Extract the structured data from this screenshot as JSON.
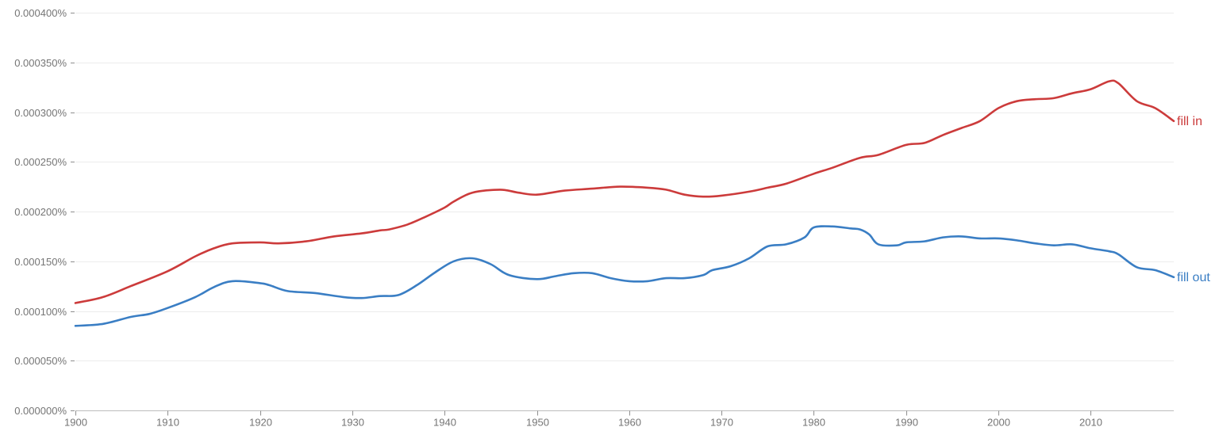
{
  "chart_data": {
    "type": "line",
    "title": "",
    "xlabel": "",
    "ylabel": "",
    "xlim": [
      1900,
      2019
    ],
    "ylim": [
      0,
      0.0004
    ],
    "grid": true,
    "legend": "inline-right",
    "y_ticks": [
      {
        "value": 0,
        "label": "0.000000%"
      },
      {
        "value": 5e-05,
        "label": "0.000050%"
      },
      {
        "value": 0.0001,
        "label": "0.000100%"
      },
      {
        "value": 0.00015,
        "label": "0.000150%"
      },
      {
        "value": 0.0002,
        "label": "0.000200%"
      },
      {
        "value": 0.00025,
        "label": "0.000250%"
      },
      {
        "value": 0.0003,
        "label": "0.000300%"
      },
      {
        "value": 0.00035,
        "label": "0.000350%"
      },
      {
        "value": 0.0004,
        "label": "0.000400%"
      }
    ],
    "x_ticks": [
      {
        "value": 1900,
        "label": "1900"
      },
      {
        "value": 1910,
        "label": "1910"
      },
      {
        "value": 1920,
        "label": "1920"
      },
      {
        "value": 1930,
        "label": "1930"
      },
      {
        "value": 1940,
        "label": "1940"
      },
      {
        "value": 1950,
        "label": "1950"
      },
      {
        "value": 1960,
        "label": "1960"
      },
      {
        "value": 1970,
        "label": "1970"
      },
      {
        "value": 1980,
        "label": "1980"
      },
      {
        "value": 1990,
        "label": "1990"
      },
      {
        "value": 2000,
        "label": "2000"
      },
      {
        "value": 2010,
        "label": "2010"
      }
    ],
    "series": [
      {
        "name": "fill in",
        "color": "#cc3b3b",
        "x": [
          1900,
          1903,
          1906,
          1910,
          1913,
          1915,
          1917,
          1920,
          1922,
          1925,
          1928,
          1931,
          1933,
          1934,
          1936,
          1938,
          1940,
          1941,
          1943,
          1946,
          1948,
          1950,
          1953,
          1956,
          1959,
          1962,
          1964,
          1966,
          1968,
          1970,
          1973,
          1975,
          1977,
          1980,
          1982,
          1985,
          1987,
          1990,
          1992,
          1994,
          1996,
          1998,
          2000,
          2002,
          2004,
          2006,
          2008,
          2010,
          2012,
          2013,
          2015,
          2017,
          2019
        ],
        "values": [
          0.000108,
          0.000114,
          0.000125,
          0.00014,
          0.000155,
          0.000163,
          0.000168,
          0.000169,
          0.000168,
          0.00017,
          0.000175,
          0.000178,
          0.000181,
          0.000182,
          0.000187,
          0.000195,
          0.000204,
          0.00021,
          0.000219,
          0.000222,
          0.000219,
          0.000217,
          0.000221,
          0.000223,
          0.000225,
          0.000224,
          0.000222,
          0.000217,
          0.000215,
          0.000216,
          0.00022,
          0.000224,
          0.000228,
          0.000238,
          0.000244,
          0.000254,
          0.000257,
          0.000267,
          0.000269,
          0.000277,
          0.000284,
          0.000291,
          0.000304,
          0.000311,
          0.000313,
          0.000314,
          0.000319,
          0.000323,
          0.000331,
          0.000329,
          0.000311,
          0.000304,
          0.000291
        ]
      },
      {
        "name": "fill out",
        "color": "#3a7ec4",
        "x": [
          1900,
          1903,
          1906,
          1908,
          1910,
          1913,
          1915,
          1917,
          1920,
          1921,
          1923,
          1926,
          1929,
          1931,
          1933,
          1935,
          1937,
          1939,
          1941,
          1943,
          1945,
          1947,
          1950,
          1952,
          1954,
          1956,
          1958,
          1960,
          1962,
          1964,
          1966,
          1968,
          1969,
          1971,
          1973,
          1975,
          1977,
          1979,
          1980,
          1982,
          1984,
          1985,
          1986,
          1987,
          1989,
          1990,
          1992,
          1994,
          1996,
          1998,
          2000,
          2002,
          2004,
          2006,
          2008,
          2010,
          2012,
          2013,
          2015,
          2017,
          2019
        ],
        "values": [
          8.5e-05,
          8.7e-05,
          9.4e-05,
          9.7e-05,
          0.000103,
          0.000114,
          0.000124,
          0.00013,
          0.000128,
          0.000126,
          0.00012,
          0.000118,
          0.000114,
          0.000113,
          0.000115,
          0.000116,
          0.000126,
          0.000139,
          0.00015,
          0.000153,
          0.000147,
          0.000136,
          0.000132,
          0.000135,
          0.000138,
          0.000138,
          0.000133,
          0.00013,
          0.00013,
          0.000133,
          0.000133,
          0.000136,
          0.000141,
          0.000145,
          0.000153,
          0.000165,
          0.000167,
          0.000174,
          0.000184,
          0.000185,
          0.000183,
          0.000182,
          0.000177,
          0.000167,
          0.000166,
          0.000169,
          0.00017,
          0.000174,
          0.000175,
          0.000173,
          0.000173,
          0.000171,
          0.000168,
          0.000166,
          0.000167,
          0.000163,
          0.00016,
          0.000157,
          0.000144,
          0.000141,
          0.000134
        ]
      }
    ]
  }
}
